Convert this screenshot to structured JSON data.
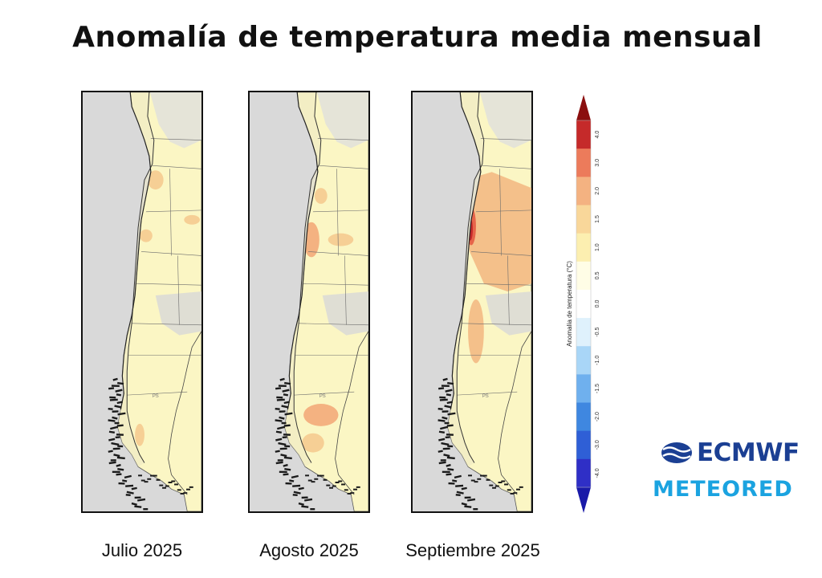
{
  "title": "Anomalía de temperatura media mensual",
  "panels": [
    {
      "caption": "Julio 2025",
      "intensity": 0
    },
    {
      "caption": "Agosto 2025",
      "intensity": 1
    },
    {
      "caption": "Septiembre 2025",
      "intensity": 2
    }
  ],
  "map_label": "PS",
  "colorbar": {
    "label": "Anomalía de temperatura (°C)",
    "ticks": [
      "-4.0",
      "-3.0",
      "-2.0",
      "-1.5",
      "-1.0",
      "-0.5",
      "0.0",
      "0.5",
      "1.0",
      "1.5",
      "2.0",
      "3.0",
      "4.0"
    ],
    "colors": [
      "#2f2fc6",
      "#2f5fd6",
      "#3f87e0",
      "#6fb0ee",
      "#a9d6f7",
      "#dff1fc",
      "#ffffff",
      "#fffde6",
      "#fcefb0",
      "#f9d79a",
      "#f4b281",
      "#ec7b5b",
      "#c52a2a"
    ],
    "arrow_low": "#1a1aa8",
    "arrow_high": "#8b0f0f"
  },
  "logos": {
    "ecmwf": "ECMWF",
    "meteored": "METEORED"
  }
}
